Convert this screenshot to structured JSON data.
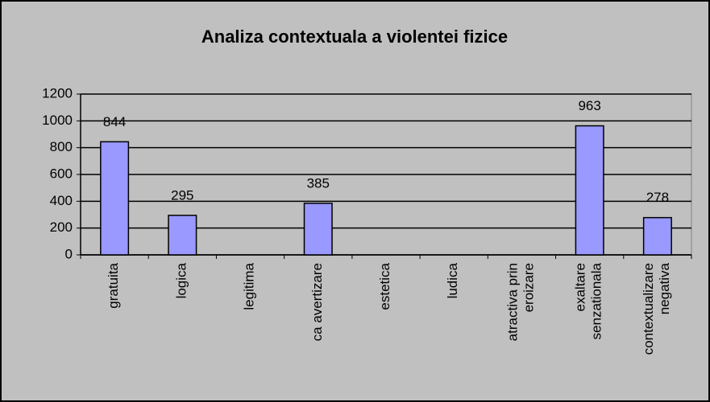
{
  "chart_data": {
    "type": "bar",
    "title": "Analiza contextuala a violentei fizice",
    "categories": [
      "gratuita",
      "logica",
      "legitima",
      "ca avertizare",
      "estetica",
      "ludica",
      "atractiva prin eroizare",
      "exaltare senzationala",
      "contextualizare negativa"
    ],
    "values": [
      844,
      295,
      null,
      385,
      null,
      null,
      null,
      963,
      278
    ],
    "color": "#9999ff",
    "ylim": [
      0,
      1200
    ],
    "yticks": [
      0,
      200,
      400,
      600,
      800,
      1000,
      1200
    ],
    "grid": true
  }
}
